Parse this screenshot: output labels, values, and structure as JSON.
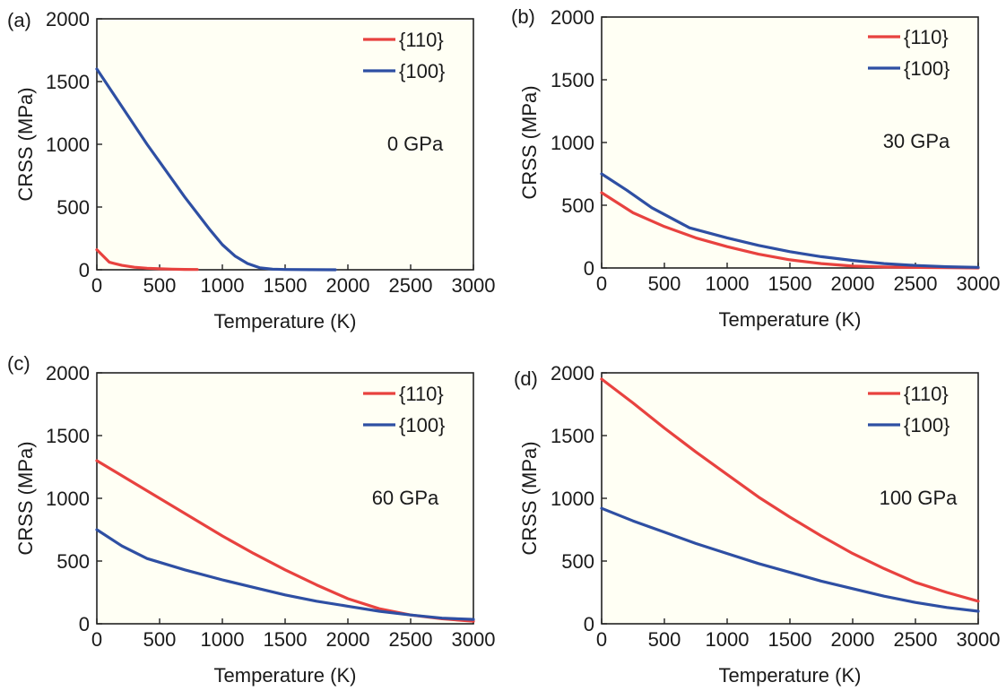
{
  "chart_data": [
    {
      "type": "line",
      "panel_label": "(a)",
      "annotation": "0 GPa",
      "xlabel": "Temperature (K)",
      "ylabel": "CRSS (MPa)",
      "xlim": [
        0,
        3000
      ],
      "ylim": [
        0,
        2000
      ],
      "xticks": [
        "0",
        "500",
        "1000",
        "1500",
        "2000",
        "2500",
        "3000"
      ],
      "yticks": [
        "0",
        "500",
        "1000",
        "1500",
        "2000"
      ],
      "legend_position": "top-right",
      "series": [
        {
          "name": "{110}",
          "color": "#e8423f",
          "x": [
            0,
            100,
            200,
            300,
            400,
            500,
            600,
            700,
            800
          ],
          "y": [
            160,
            60,
            35,
            20,
            12,
            8,
            5,
            3,
            2
          ]
        },
        {
          "name": "{100}",
          "color": "#2e4fa3",
          "x": [
            0,
            100,
            200,
            300,
            400,
            500,
            600,
            700,
            800,
            900,
            1000,
            1100,
            1200,
            1300,
            1400,
            1500,
            1700,
            1900
          ],
          "y": [
            1600,
            1450,
            1300,
            1150,
            1000,
            860,
            720,
            580,
            450,
            320,
            200,
            110,
            50,
            15,
            5,
            2,
            1,
            0
          ]
        }
      ]
    },
    {
      "type": "line",
      "panel_label": "(b)",
      "annotation": "30 GPa",
      "xlabel": "Temperature (K)",
      "ylabel": "CRSS (MPa)",
      "xlim": [
        0,
        3000
      ],
      "ylim": [
        0,
        2000
      ],
      "xticks": [
        "0",
        "500",
        "1000",
        "1500",
        "2000",
        "2500",
        "3000"
      ],
      "yticks": [
        "0",
        "500",
        "1000",
        "1500",
        "2000"
      ],
      "legend_position": "top-right",
      "series": [
        {
          "name": "{110}",
          "color": "#e8423f",
          "x": [
            0,
            250,
            500,
            750,
            1000,
            1250,
            1500,
            1750,
            2000,
            2250,
            2500,
            2750,
            3000
          ],
          "y": [
            600,
            440,
            330,
            240,
            170,
            110,
            65,
            35,
            15,
            8,
            4,
            2,
            0
          ]
        },
        {
          "name": "{100}",
          "color": "#2e4fa3",
          "x": [
            0,
            200,
            400,
            700,
            1000,
            1250,
            1500,
            1750,
            2000,
            2250,
            2500,
            2750,
            3000
          ],
          "y": [
            750,
            620,
            480,
            320,
            240,
            180,
            130,
            90,
            60,
            35,
            20,
            10,
            5
          ]
        }
      ]
    },
    {
      "type": "line",
      "panel_label": "(c)",
      "annotation": "60 GPa",
      "xlabel": "Temperature (K)",
      "ylabel": "CRSS (MPa)",
      "xlim": [
        0,
        3000
      ],
      "ylim": [
        0,
        2000
      ],
      "xticks": [
        "0",
        "500",
        "1000",
        "1500",
        "2000",
        "2500",
        "3000"
      ],
      "yticks": [
        "0",
        "500",
        "1000",
        "1500",
        "2000"
      ],
      "legend_position": "top-right",
      "series": [
        {
          "name": "{110}",
          "color": "#e8423f",
          "x": [
            0,
            250,
            500,
            750,
            1000,
            1250,
            1500,
            1750,
            2000,
            2250,
            2500,
            2750,
            3000
          ],
          "y": [
            1300,
            1150,
            1000,
            850,
            700,
            560,
            430,
            310,
            200,
            120,
            70,
            40,
            20
          ]
        },
        {
          "name": "{100}",
          "color": "#2e4fa3",
          "x": [
            0,
            200,
            400,
            700,
            1000,
            1250,
            1500,
            1750,
            2000,
            2250,
            2500,
            2750,
            3000
          ],
          "y": [
            750,
            620,
            520,
            430,
            350,
            290,
            230,
            180,
            140,
            100,
            70,
            45,
            35
          ]
        }
      ]
    },
    {
      "type": "line",
      "panel_label": "(d)",
      "annotation": "100 GPa",
      "xlabel": "Temperature (K)",
      "ylabel": "CRSS (MPa)",
      "xlim": [
        0,
        3000
      ],
      "ylim": [
        0,
        2000
      ],
      "xticks": [
        "0",
        "500",
        "1000",
        "1500",
        "2000",
        "2500",
        "3000"
      ],
      "yticks": [
        "0",
        "500",
        "1000",
        "1500",
        "2000"
      ],
      "legend_position": "top-right",
      "series": [
        {
          "name": "{110}",
          "color": "#e8423f",
          "x": [
            0,
            250,
            500,
            750,
            1000,
            1250,
            1500,
            1750,
            2000,
            2250,
            2500,
            2750,
            3000
          ],
          "y": [
            1950,
            1760,
            1560,
            1370,
            1190,
            1010,
            850,
            700,
            560,
            440,
            330,
            250,
            180
          ]
        },
        {
          "name": "{100}",
          "color": "#2e4fa3",
          "x": [
            0,
            250,
            500,
            750,
            1000,
            1250,
            1500,
            1750,
            2000,
            2250,
            2500,
            2750,
            3000
          ],
          "y": [
            920,
            820,
            730,
            640,
            560,
            480,
            410,
            340,
            280,
            220,
            170,
            130,
            100
          ]
        }
      ]
    }
  ]
}
